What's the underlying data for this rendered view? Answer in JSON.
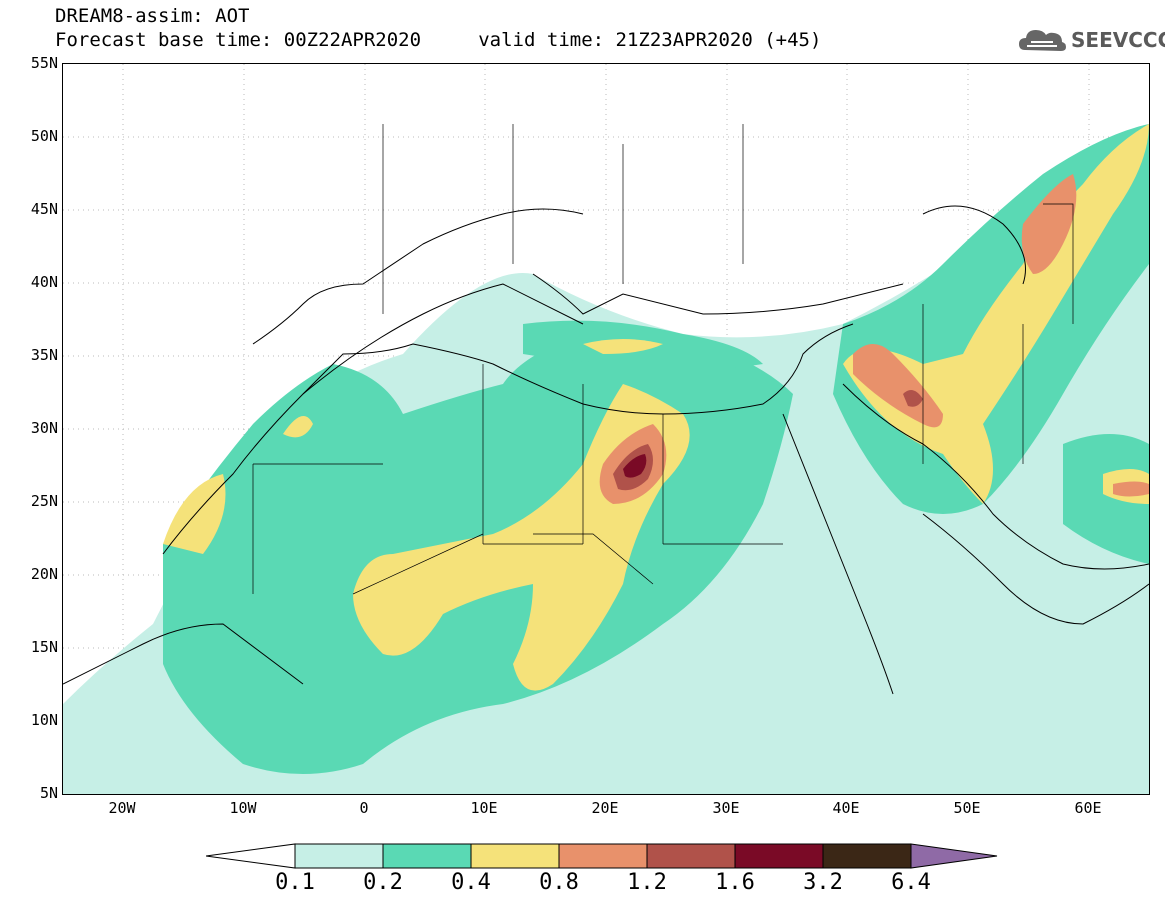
{
  "header": {
    "title_line1": "DREAM8-assim: AOT",
    "title_line2": "Forecast base time: 00Z22APR2020     valid time: 21Z23APR2020 (+45)"
  },
  "logo": {
    "text": "SEEVCCC",
    "icon": "cloud-icon"
  },
  "map": {
    "variable": "AOT",
    "model": "DREAM8-assim",
    "lat_range": [
      5,
      55
    ],
    "lon_range": [
      -25,
      65
    ],
    "lat_labels": [
      "55N",
      "50N",
      "45N",
      "40N",
      "35N",
      "30N",
      "25N",
      "20N",
      "15N",
      "10N",
      "5N"
    ],
    "lon_labels": [
      "20W",
      "10W",
      "0",
      "10E",
      "20E",
      "30E",
      "40E",
      "50E",
      "60E"
    ]
  },
  "legend": {
    "levels": [
      "0.1",
      "0.2",
      "0.4",
      "0.8",
      "1.2",
      "1.6",
      "3.2",
      "6.4"
    ],
    "colors": [
      "#ffffff",
      "#c6efe6",
      "#5ad9b4",
      "#f5e27a",
      "#e8916b",
      "#b0524a",
      "#7a0a26",
      "#3b2716",
      "#8f6aa6"
    ]
  }
}
